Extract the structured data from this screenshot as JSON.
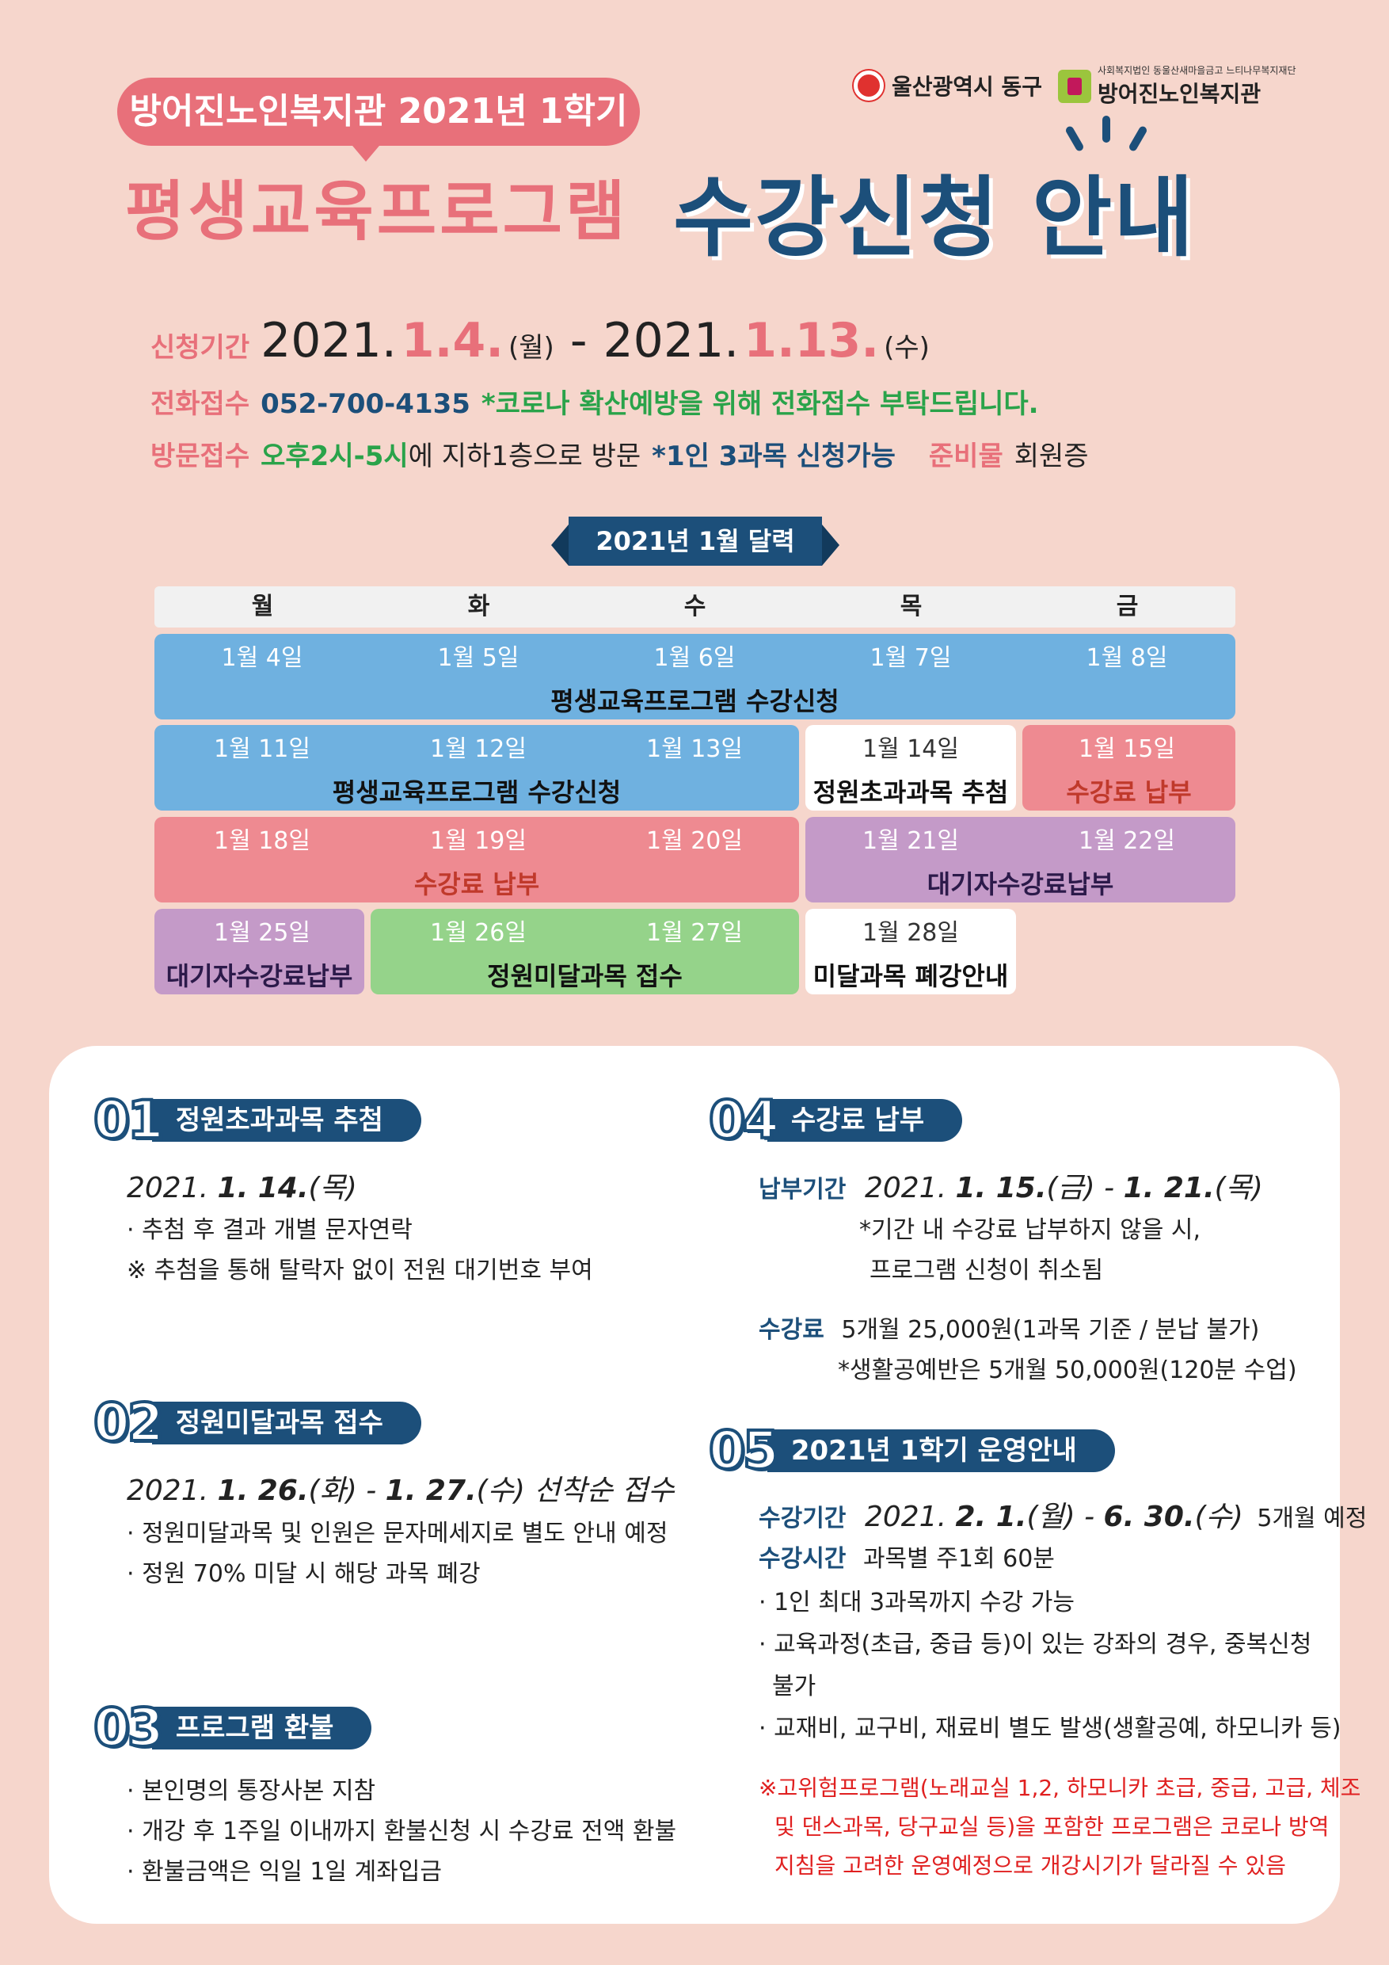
{
  "header": {
    "pill_text": "방어진노인복지관 2021년 1학기",
    "title_left": "평생교육프로그램",
    "title_right": "수강신청 안내",
    "logo_gu": "울산광역시 동구",
    "logo_center_sub": "사회복지법인 동울산새마을금고 느티나무복지재단",
    "logo_center_name": "방어진노인복지관"
  },
  "info": {
    "period_label": "신청기간",
    "period_y1": "2021.",
    "period_d1": "1.4.",
    "period_w1": "(월)",
    "period_dash": "-",
    "period_y2": "2021.",
    "period_d2": "1.13.",
    "period_w2": "(수)",
    "phone_label": "전화접수",
    "phone_number": "052-700-4135",
    "phone_note": "*코로나 확산예방을 위해 전화접수 부탁드립니다.",
    "visit_label": "방문접수",
    "visit_time": "오후2시-5시",
    "visit_text": "에 지하1층으로 방문",
    "visit_note": "*1인 3과목 신청가능",
    "prep_label": "준비물",
    "prep_value": "회원증"
  },
  "calendar": {
    "title": "2021년 1월 달력",
    "days": [
      "월",
      "화",
      "수",
      "목",
      "금"
    ],
    "dates": {
      "d4": "1월 4일",
      "d5": "1월 5일",
      "d6": "1월 6일",
      "d7": "1월 7일",
      "d8": "1월 8일",
      "d11": "1월 11일",
      "d12": "1월 12일",
      "d13": "1월 13일",
      "d14": "1월 14일",
      "d15": "1월 15일",
      "d18": "1월 18일",
      "d19": "1월 19일",
      "d20": "1월 20일",
      "d21": "1월 21일",
      "d22": "1월 22일",
      "d25": "1월 25일",
      "d26": "1월 26일",
      "d27": "1월 27일",
      "d28": "1월 28일"
    },
    "labels": {
      "w1": "평생교육프로그램 수강신청",
      "w2a": "평생교육프로그램 수강신청",
      "w2b": "정원초과과목 추첨",
      "w2c": "수강료 납부",
      "w3a": "수강료 납부",
      "w3b": "대기자수강료납부",
      "w4a": "대기자수강료납부",
      "w4b": "정원미달과목 접수",
      "w4c": "미달과목 폐강안내"
    },
    "colors": {
      "blue": "#6fb1e0",
      "rose": "#ee8a91",
      "lavender": "#c49ac8",
      "mint": "#95d38a"
    }
  },
  "sections": {
    "s1": {
      "num": "01",
      "title": "정원초과과목 추첨",
      "date_pre": "2021. ",
      "date_bold": "1. 14.",
      "date_post": "(목)",
      "l1": "· 추첨 후 결과 개별 문자연락",
      "l2": "※ 추첨을 통해 탈락자 없이 전원 대기번호 부여"
    },
    "s2": {
      "num": "02",
      "title": "정원미달과목 접수",
      "date_pre": "2021. ",
      "date_bold1": "1. 26.",
      "date_mid": "(화) - ",
      "date_bold2": "1. 27.",
      "date_post": "(수) 선착순 접수",
      "l1": "· 정원미달과목 및 인원은 문자메세지로 별도 안내 예정",
      "l2": "· 정원 70% 미달 시 해당 과목 폐강"
    },
    "s3": {
      "num": "03",
      "title": "프로그램 환불",
      "l1": "· 본인명의 통장사본 지참",
      "l2": "· 개강 후 1주일 이내까지 환불신청 시 수강료 전액 환불",
      "l3": "· 환불금액은 익일 1일 계좌입금"
    },
    "s4": {
      "num": "04",
      "title": "수강료 납부",
      "period_label": "납부기간",
      "date_pre": "2021. ",
      "date_bold1": "1. 15.",
      "date_mid": "(금) - ",
      "date_bold2": "1. 21.",
      "date_post": "(목)",
      "note1": "*기간 내 수강료 납부하지 않을 시,",
      "note2": "프로그램 신청이 취소됨",
      "fee_label": "수강료",
      "fee_value": "5개월 25,000원(1과목 기준 / 분납 불가)",
      "fee_note": "*생활공예반은 5개월 50,000원(120분 수업)"
    },
    "s5": {
      "num": "05",
      "title": "2021년 1학기 운영안내",
      "period_label": "수강기간",
      "date_pre": "2021. ",
      "date_bold1": "2. 1.",
      "date_mid": "(월) - ",
      "date_bold2": "6. 30.",
      "date_post": "(수)",
      "date_extra": "5개월 예정",
      "time_label": "수강시간",
      "time_value": "과목별 주1회 60분",
      "l1": "· 1인 최대 3과목까지 수강 가능",
      "l2": "· 교육과정(초급, 중급 등)이 있는 강좌의 경우, 중복신청",
      "l2b": "불가",
      "l3": "· 교재비, 교구비, 재료비 별도 발생(생활공예, 하모니카 등)",
      "w1": "※고위험프로그램(노래교실 1,2, 하모니카 초급, 중급, 고급, 체조",
      "w2": "및 댄스과목, 당구교실 등)을 포함한 프로그램은 코로나 방역",
      "w3": "지침을 고려한 운영예정으로 개강시기가 달라질 수 있음"
    }
  }
}
